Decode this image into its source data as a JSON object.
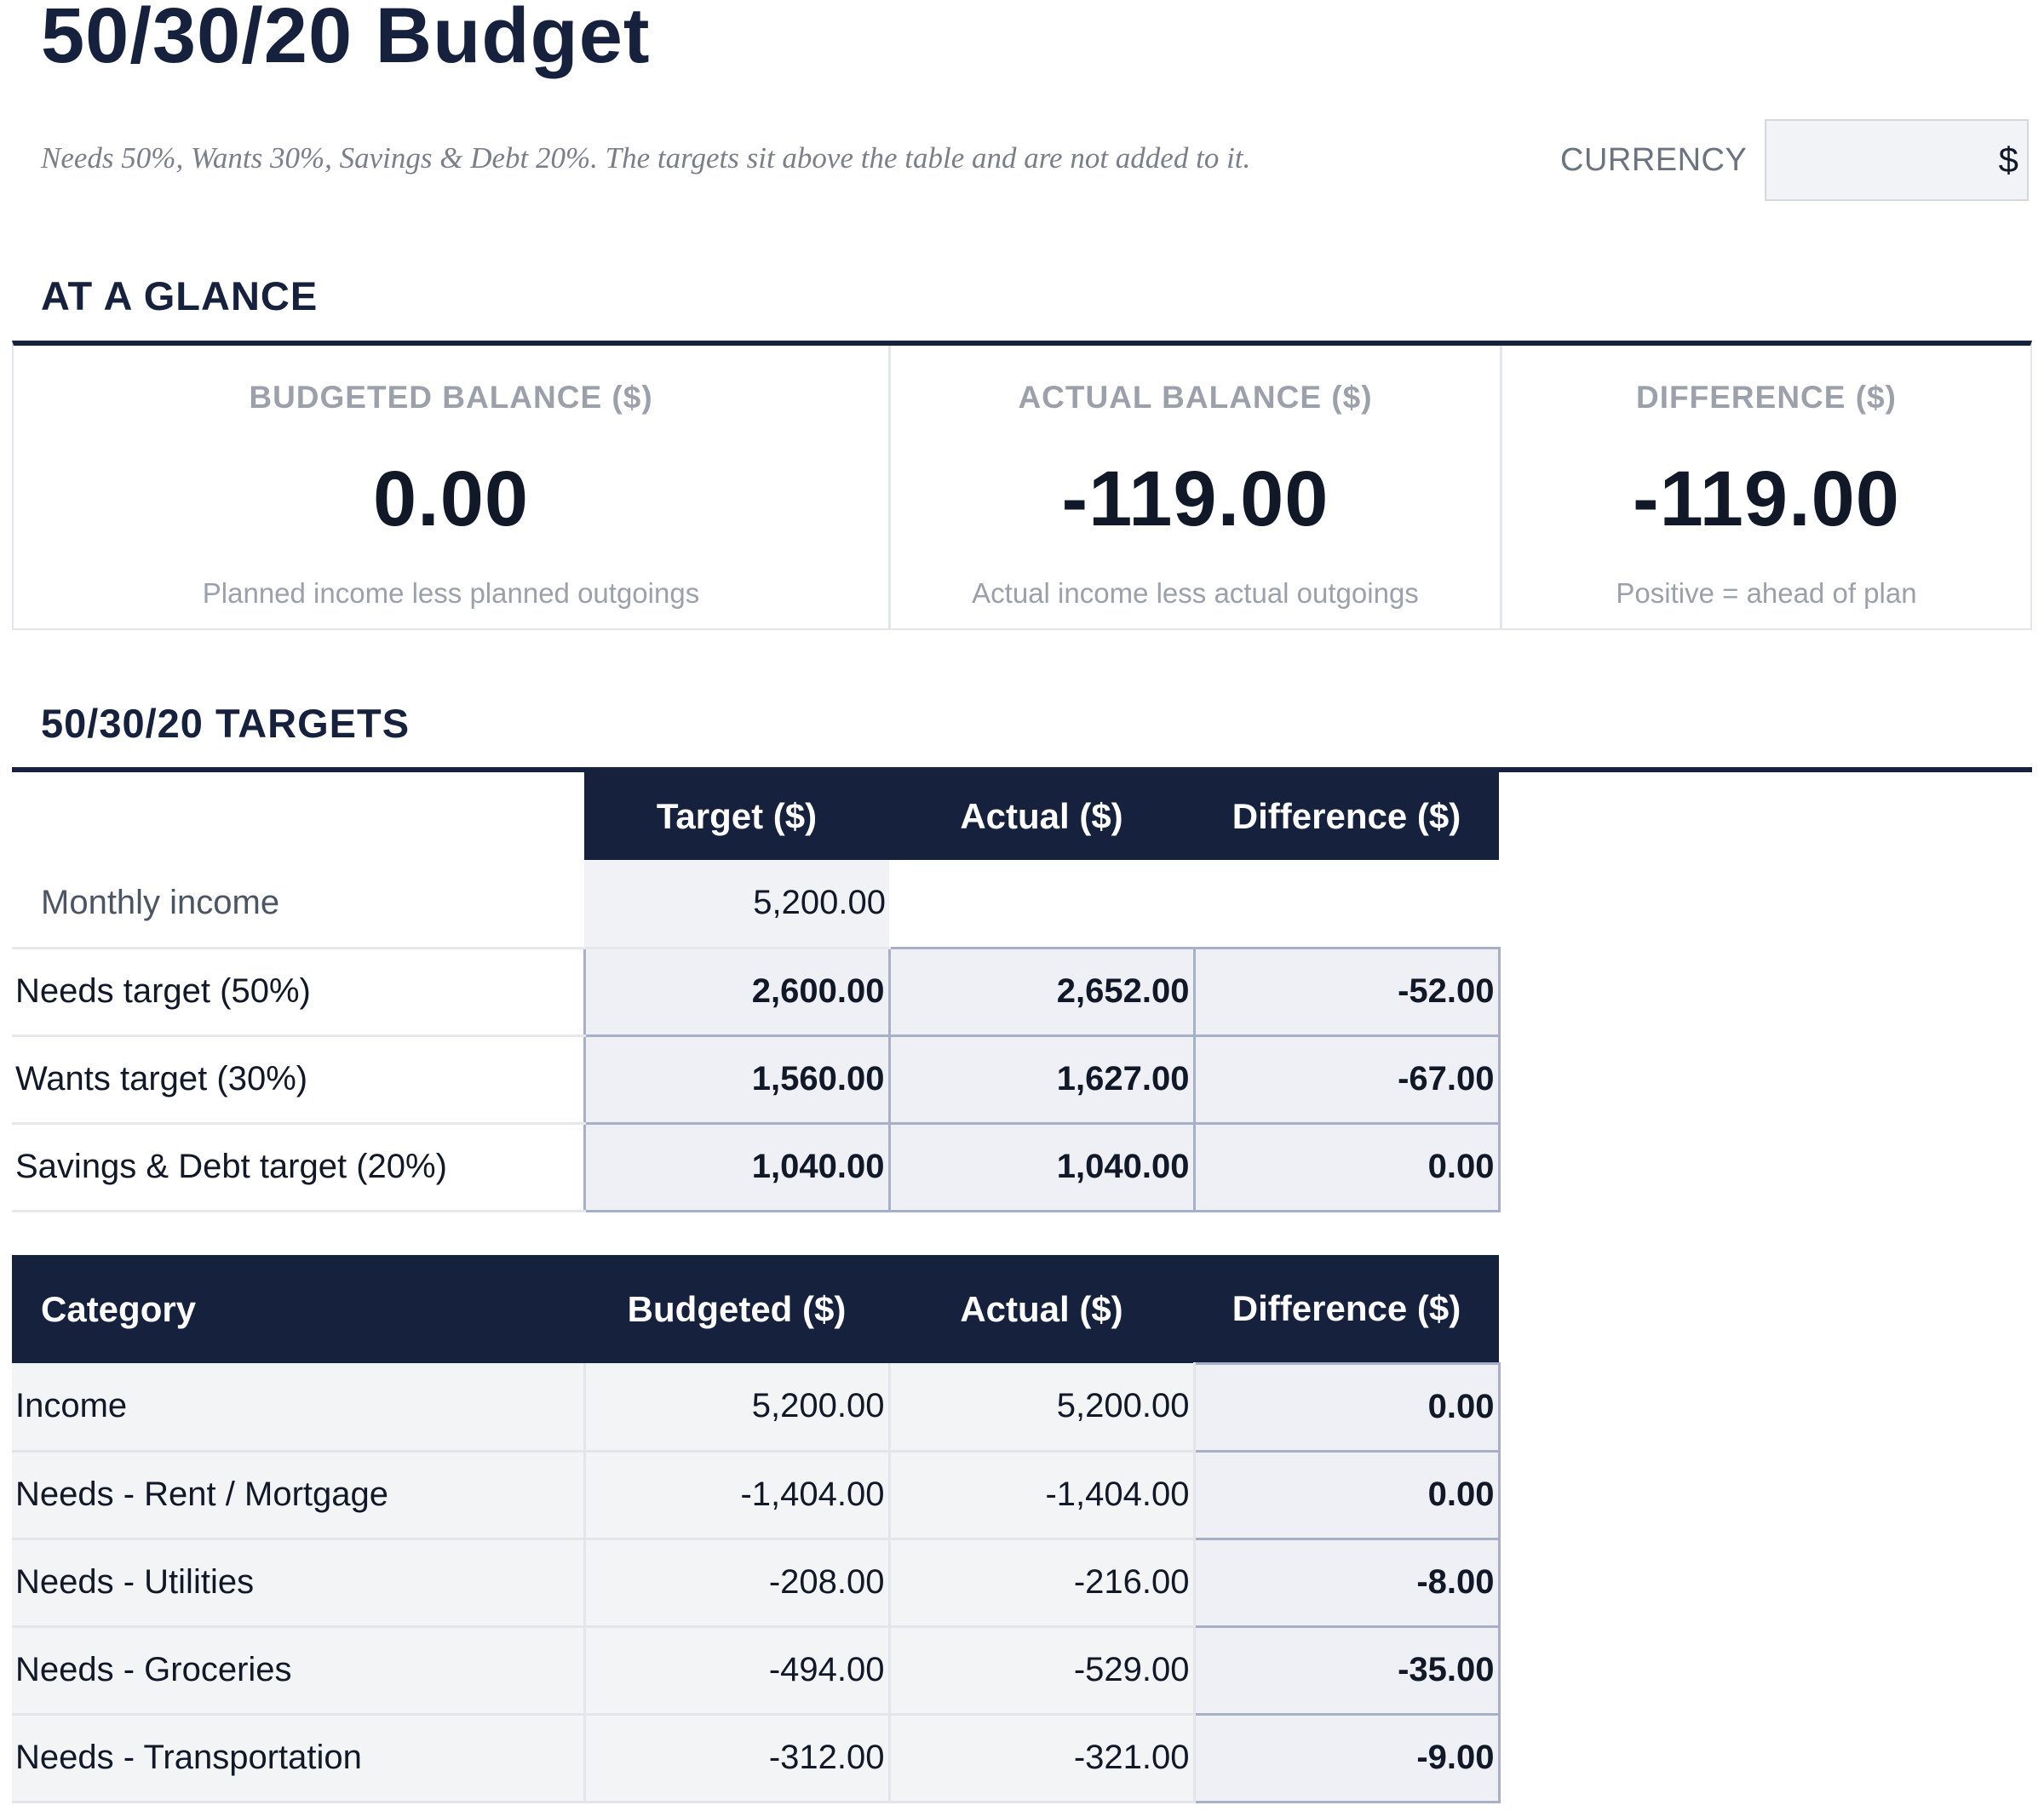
{
  "header": {
    "title": "50/30/20 Budget",
    "subtitle": "Needs 50%, Wants 30%, Savings & Debt 20%. The targets sit above the table and are not added to it.",
    "currency_label": "CURRENCY",
    "currency_value": "$"
  },
  "glance": {
    "heading": "AT A GLANCE",
    "cards": [
      {
        "label": "BUDGETED BALANCE ($)",
        "value": "0.00",
        "note": "Planned income less planned outgoings"
      },
      {
        "label": "ACTUAL BALANCE ($)",
        "value": "-119.00",
        "note": "Actual income less actual outgoings"
      },
      {
        "label": "DIFFERENCE ($)",
        "value": "-119.00",
        "note": "Positive = ahead of plan"
      }
    ]
  },
  "targets": {
    "heading": "50/30/20 TARGETS",
    "columns": [
      "",
      "Target ($)",
      "Actual ($)",
      "Difference ($)"
    ],
    "income_row": {
      "label": "Monthly income",
      "target": "5,200.00"
    },
    "rows": [
      {
        "label": "Needs target (50%)",
        "target": "2,600.00",
        "actual": "2,652.00",
        "difference": "-52.00"
      },
      {
        "label": "Wants target (30%)",
        "target": "1,560.00",
        "actual": "1,627.00",
        "difference": "-67.00"
      },
      {
        "label": "Savings & Debt target (20%)",
        "target": "1,040.00",
        "actual": "1,040.00",
        "difference": "0.00"
      }
    ]
  },
  "categories": {
    "columns": [
      "Category",
      "Budgeted ($)",
      "Actual ($)",
      "Difference ($)"
    ],
    "rows": [
      {
        "label": "Income",
        "budgeted": "5,200.00",
        "actual": "5,200.00",
        "difference": "0.00"
      },
      {
        "label": "Needs - Rent / Mortgage",
        "budgeted": "-1,404.00",
        "actual": "-1,404.00",
        "difference": "0.00"
      },
      {
        "label": "Needs - Utilities",
        "budgeted": "-208.00",
        "actual": "-216.00",
        "difference": "-8.00"
      },
      {
        "label": "Needs - Groceries",
        "budgeted": "-494.00",
        "actual": "-529.00",
        "difference": "-35.00"
      },
      {
        "label": "Needs - Transportation",
        "budgeted": "-312.00",
        "actual": "-321.00",
        "difference": "-9.00"
      }
    ]
  },
  "colors": {
    "navy": "#16213d",
    "muted": "#9ba0ab",
    "cell_fill": "#eff0f5",
    "cell_border": "#a8b0c6"
  }
}
